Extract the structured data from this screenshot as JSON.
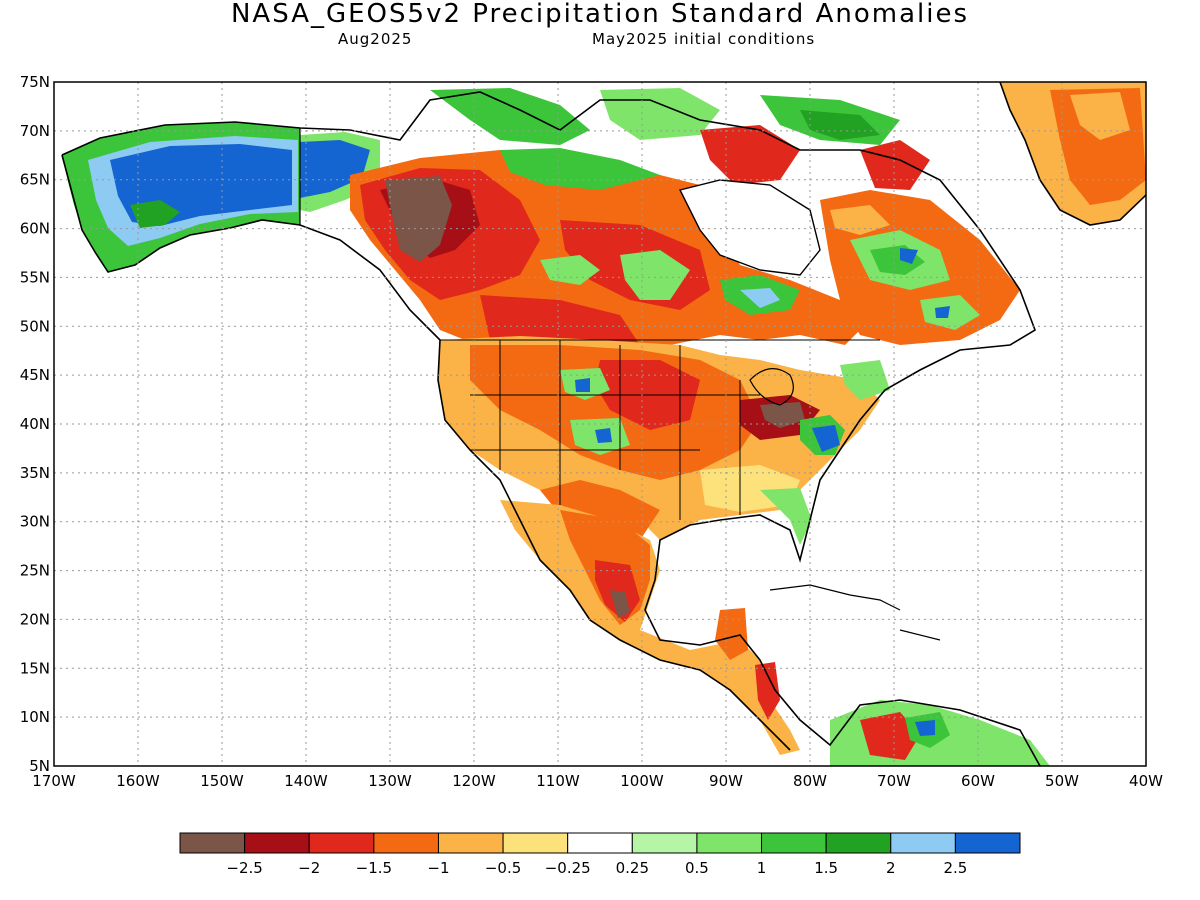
{
  "header": {
    "title": "NASA_GEOS5v2 Precipitation Standard Anomalies",
    "valid_month": "Aug2025",
    "init_conditions": "May2025 initial conditions"
  },
  "map": {
    "projection": "cylindrical equidistant",
    "lon_range": [
      -170,
      -40
    ],
    "lat_range": [
      5,
      75
    ],
    "gridlines": "dotted",
    "lat_labels": [
      "75N",
      "70N",
      "65N",
      "60N",
      "55N",
      "50N",
      "45N",
      "40N",
      "35N",
      "30N",
      "25N",
      "20N",
      "15N",
      "10N",
      "5N"
    ],
    "lon_labels": [
      "170W",
      "160W",
      "150W",
      "140W",
      "130W",
      "120W",
      "110W",
      "100W",
      "90W",
      "80W",
      "70W",
      "60W",
      "50W",
      "40W"
    ]
  },
  "colorbar": {
    "colors": [
      "#7a5548",
      "#a50f15",
      "#e0281c",
      "#f46a12",
      "#fbb246",
      "#fde17a",
      "#ffffff",
      "#b6f5a6",
      "#7ee46a",
      "#3cc43a",
      "#22a222",
      "#8ecbf2",
      "#1464d2"
    ],
    "labels": [
      "-2.5",
      "-2",
      "-1.5",
      "-1",
      "-0.5",
      "-0.25",
      "0.25",
      "0.5",
      "1",
      "1.5",
      "2",
      "2.5"
    ]
  },
  "map_data": {
    "regions": [
      {
        "name": "Alaska interior",
        "level": 2.5
      },
      {
        "name": "Yukon / western Canada",
        "level": -2.5
      },
      {
        "name": "Southern Canada",
        "level": -1.5
      },
      {
        "name": "Great Plains",
        "level": -1
      },
      {
        "name": "Ohio Valley",
        "level": -2.5
      },
      {
        "name": "Mid-Atlantic",
        "level": 2.5
      },
      {
        "name": "Greenland",
        "level": -1
      },
      {
        "name": "Mexico",
        "level": -1.5
      }
    ]
  }
}
